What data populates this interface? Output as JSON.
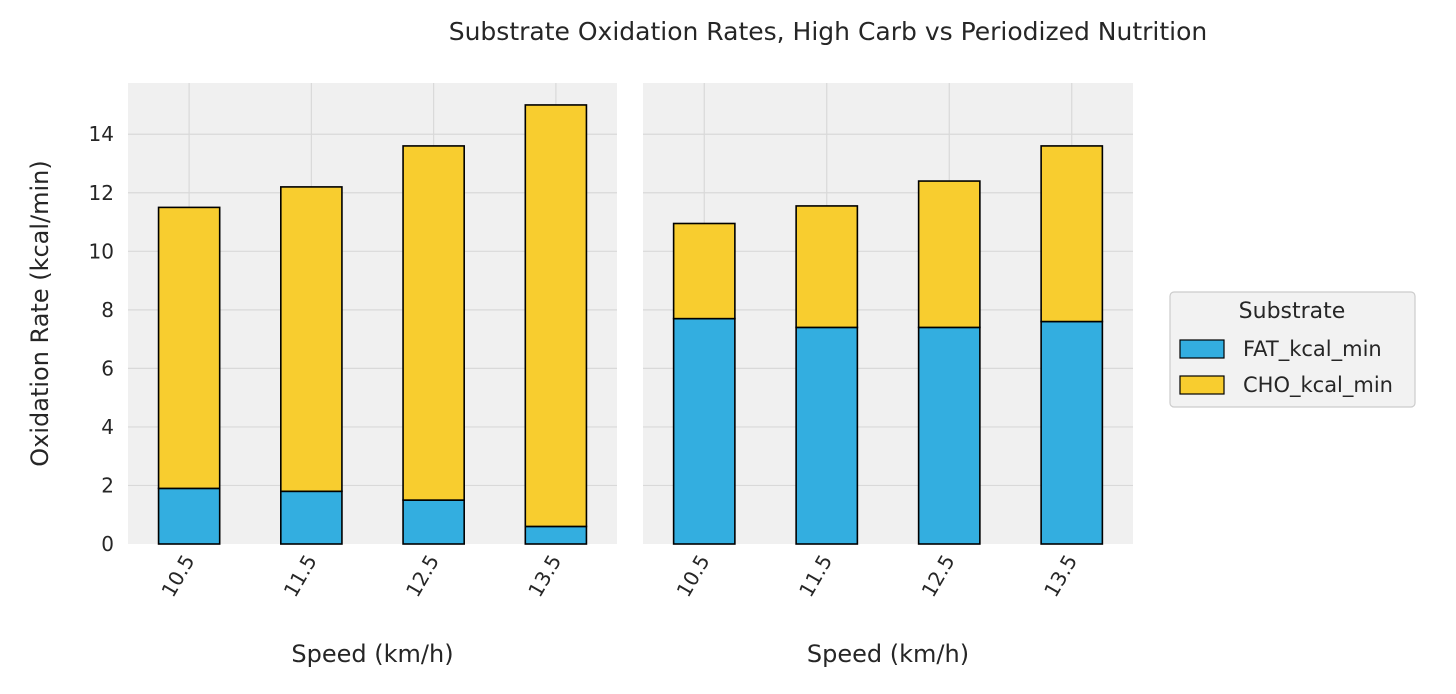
{
  "figure": {
    "title": "Substrate Oxidation Rates, High Carb vs Periodized Nutrition",
    "background": "#ffffff",
    "panel_background": "#f0f0f0",
    "grid_color": "#d9d9d9"
  },
  "legend": {
    "title": "Substrate",
    "placement": "center-right",
    "items": [
      {
        "label": "FAT_kcal_min",
        "color": "#33aee0"
      },
      {
        "label": "CHO_kcal_min",
        "color": "#f8cd2f"
      }
    ]
  },
  "chart_data": [
    {
      "type": "bar",
      "stacked": true,
      "categories": [
        "10.5",
        "11.5",
        "12.5",
        "13.5"
      ],
      "series": [
        {
          "name": "FAT_kcal_min",
          "color": "#33aee0",
          "values": [
            1.9,
            1.8,
            1.5,
            0.6
          ]
        },
        {
          "name": "CHO_kcal_min",
          "color": "#f8cd2f",
          "values": [
            9.6,
            10.4,
            12.1,
            14.4
          ]
        }
      ],
      "xlabel": "Speed (km/h)",
      "ylabel": "Oxidation Rate (kcal/min)",
      "ylim": [
        0,
        15.75
      ],
      "yticks": [
        "0",
        "2",
        "4",
        "6",
        "8",
        "10",
        "12",
        "14"
      ],
      "grid": true
    },
    {
      "type": "bar",
      "stacked": true,
      "categories": [
        "10.5",
        "11.5",
        "12.5",
        "13.5"
      ],
      "series": [
        {
          "name": "FAT_kcal_min",
          "color": "#33aee0",
          "values": [
            7.7,
            7.4,
            7.4,
            7.6
          ]
        },
        {
          "name": "CHO_kcal_min",
          "color": "#f8cd2f",
          "values": [
            3.25,
            4.15,
            5.0,
            6.0
          ]
        }
      ],
      "xlabel": "Speed (km/h)",
      "ylabel": "",
      "ylim": [
        0,
        15.75
      ],
      "yticks": [],
      "grid": true
    }
  ]
}
